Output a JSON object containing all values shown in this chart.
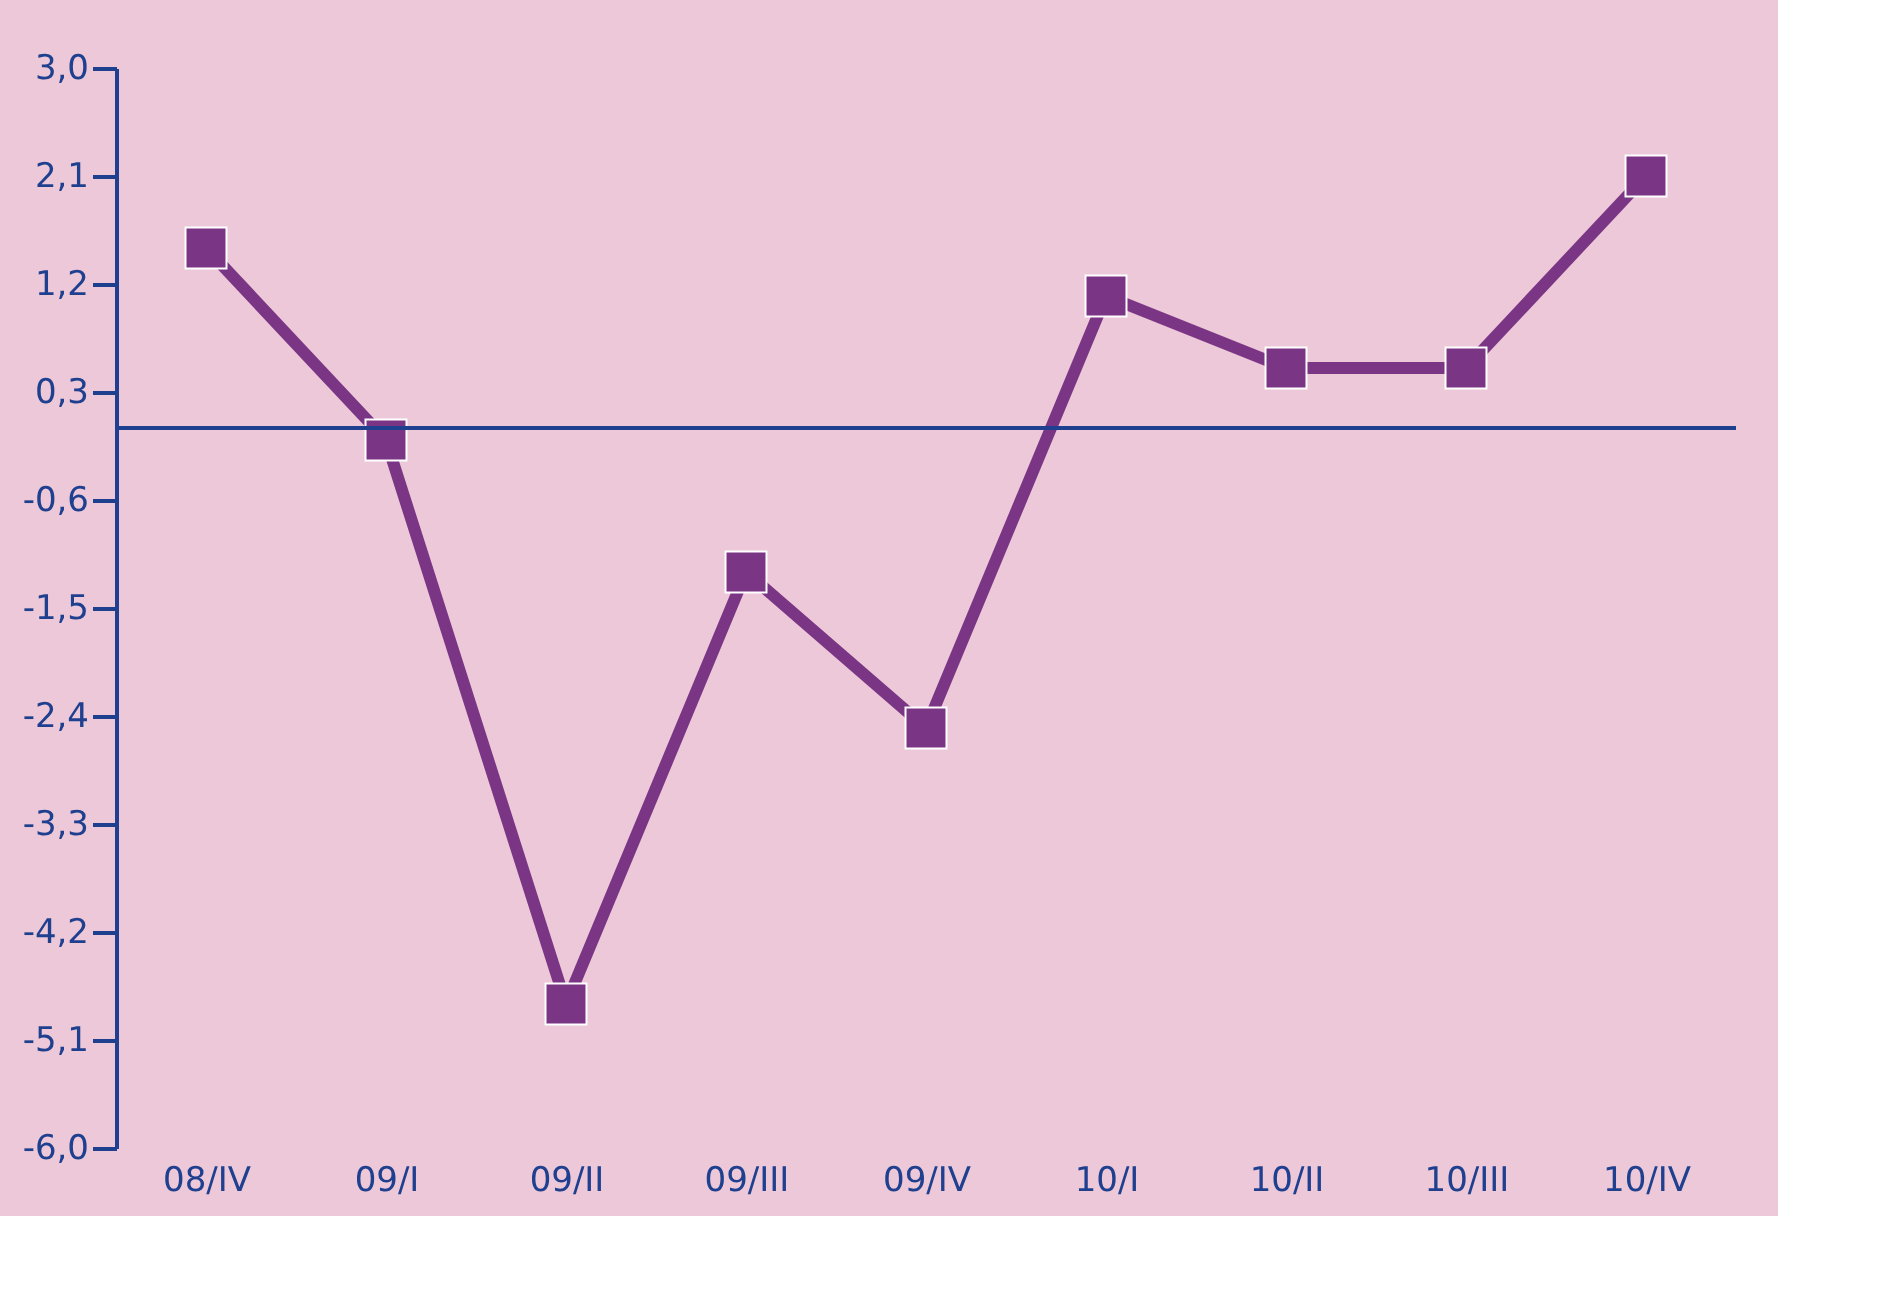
{
  "chart_data": {
    "type": "line",
    "categories": [
      "08/IV",
      "09/I",
      "09/II",
      "09/III",
      "09/IV",
      "10/I",
      "10/II",
      "10/III",
      "10/IV"
    ],
    "series": [
      {
        "color": "#7b3585",
        "values": [
          1.5,
          -0.1,
          -4.8,
          -1.2,
          -2.5,
          1.1,
          0.5,
          0.5,
          2.1
        ]
      }
    ],
    "ylim": [
      -6.0,
      3.0
    ],
    "yticks": [
      {
        "value": 3.0,
        "label": "3,0"
      },
      {
        "value": 2.1,
        "label": "2,1"
      },
      {
        "value": 1.2,
        "label": "1,2"
      },
      {
        "value": 0.3,
        "label": "0,3"
      },
      {
        "value": -0.6,
        "label": "-0,6"
      },
      {
        "value": -1.5,
        "label": "-1,5"
      },
      {
        "value": -2.4,
        "label": "-2,4"
      },
      {
        "value": -3.3,
        "label": "-3,3"
      },
      {
        "value": -4.2,
        "label": "-4,2"
      },
      {
        "value": -5.1,
        "label": "-5,1"
      },
      {
        "value": -6.0,
        "label": "-6,0"
      }
    ],
    "ref_lines": [
      {
        "axis": "y",
        "value": 0,
        "color": "#1f3f8f"
      }
    ],
    "grid": false,
    "marker": "square",
    "line_style": "solid"
  }
}
